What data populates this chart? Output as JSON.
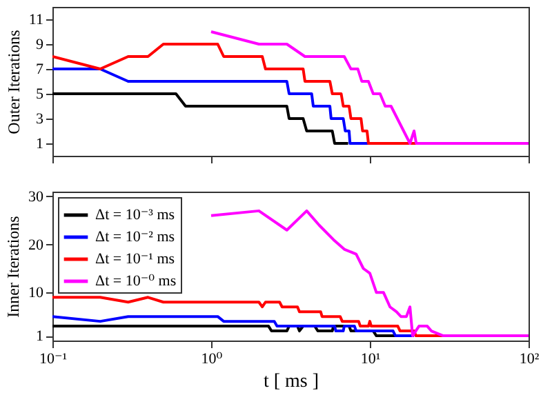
{
  "chart_data": [
    {
      "type": "line",
      "ylabel": "Outer Iterations",
      "log": "x",
      "xlim": [
        0.1,
        100
      ],
      "xticks": [
        {
          "value": 0.1,
          "label": null
        },
        {
          "value": 1,
          "label": null
        },
        {
          "value": 10,
          "label": null
        },
        {
          "value": 100,
          "label": null
        }
      ],
      "ylim": [
        0,
        12
      ],
      "yticks": [
        1,
        3,
        5,
        7,
        9,
        11
      ],
      "tick_labels": "y",
      "legend": false,
      "grid": false,
      "series": [
        {
          "color": "#000000",
          "x": [
            0.1,
            0.6,
            0.69,
            3.0,
            3.1,
            3.8,
            4.0,
            5.8,
            6.0,
            7.3
          ],
          "values": [
            5,
            5,
            4,
            4,
            3,
            3,
            2,
            2,
            1,
            1
          ]
        },
        {
          "color": "#0000ff",
          "x": [
            0.1,
            0.2,
            0.3,
            3.0,
            3.1,
            4.3,
            4.4,
            5.6,
            5.7,
            6.8,
            7.0,
            7.4,
            7.5,
            9.8
          ],
          "values": [
            7,
            7,
            6,
            6,
            5,
            5,
            4,
            4,
            3,
            3,
            2,
            2,
            1,
            1
          ]
        },
        {
          "color": "#ff0000",
          "x": [
            0.1,
            0.2,
            0.3,
            0.4,
            0.5,
            1.1,
            1.2,
            2.1,
            2.2,
            3.8,
            3.9,
            5.6,
            5.8,
            6.6,
            6.8,
            7.4,
            7.6,
            8.8,
            9.0,
            9.6,
            9.8,
            20
          ],
          "values": [
            8,
            7,
            8,
            8,
            9,
            9,
            8,
            8,
            7,
            7,
            6,
            6,
            5,
            5,
            4,
            4,
            3,
            3,
            2,
            2,
            1,
            1
          ]
        },
        {
          "color": "#ff00ff",
          "x": [
            1,
            2,
            3,
            3.9,
            6.9,
            7.6,
            8.4,
            8.9,
            9.8,
            10.5,
            11.6,
            12.5,
            13.6,
            17.9,
            19,
            19.6,
            100
          ],
          "values": [
            10,
            9,
            9,
            8,
            8,
            7,
            7,
            6,
            6,
            5,
            5,
            4,
            4,
            1,
            2,
            1,
            1
          ]
        }
      ]
    },
    {
      "type": "line",
      "ylabel": "Inner Iterations",
      "xlabel": "t [ ms ]",
      "log": "x",
      "xlim": [
        0.1,
        100
      ],
      "xticks": [
        {
          "value": 0.1,
          "label": "10⁻¹"
        },
        {
          "value": 1,
          "label": "10⁰"
        },
        {
          "value": 10,
          "label": "10¹"
        },
        {
          "value": 100,
          "label": "10²"
        }
      ],
      "ylim": [
        0,
        31
      ],
      "yticks": [
        1,
        10,
        20,
        30
      ],
      "legend": "top left",
      "grid": false,
      "series": [
        {
          "name": "Δt = 10⁻³ ms",
          "color": "#000000",
          "x": [
            0.1,
            2.3,
            2.4,
            3.0,
            3.1,
            3.5,
            3.6,
            3.8,
            4.5,
            4.7,
            5.8,
            5.9,
            7.4,
            7.6,
            10.5,
            11,
            15
          ],
          "values": [
            3,
            3,
            2,
            2,
            3,
            3,
            2,
            3,
            3,
            2,
            2,
            3,
            3,
            2,
            2,
            1,
            1
          ]
        },
        {
          "name": "Δt = 10⁻² ms",
          "color": "#0000ff",
          "x": [
            0.1,
            0.2,
            0.3,
            1.1,
            1.2,
            2.5,
            2.6,
            6.0,
            6.1,
            6.8,
            6.9,
            8.0,
            8.2,
            14,
            14.5,
            19
          ],
          "values": [
            5,
            4,
            5,
            5,
            4,
            4,
            3,
            3,
            2,
            2,
            3,
            3,
            2,
            2,
            1,
            1
          ]
        },
        {
          "name": "Δt = 10⁻¹ ms",
          "color": "#ff0000",
          "x": [
            0.1,
            0.2,
            0.3,
            0.4,
            0.5,
            2.0,
            2.1,
            2.2,
            2.7,
            2.8,
            3.5,
            3.6,
            4.9,
            5,
            6.5,
            6.7,
            8.5,
            8.7,
            9.8,
            10,
            10.2,
            15,
            15.5,
            19,
            19.5,
            30
          ],
          "values": [
            9,
            9,
            8,
            9,
            8,
            8,
            7,
            8,
            8,
            7,
            7,
            6,
            6,
            5,
            5,
            4,
            4,
            3,
            3,
            4,
            3,
            3,
            2,
            2,
            1,
            1
          ]
        },
        {
          "name": "Δt = 10⁻⁰ ms",
          "color": "#ff00ff",
          "x": [
            1,
            2,
            3,
            4,
            4.8,
            5.9,
            6.9,
            8.2,
            9.1,
            10,
            11,
            12.2,
            13.4,
            14.7,
            15.7,
            17,
            17.9,
            18.6,
            20.4,
            23,
            24.4,
            29,
            100
          ],
          "values": [
            26,
            27,
            23,
            27,
            24,
            21,
            19,
            18,
            15,
            14,
            10,
            10,
            7,
            6,
            5,
            5,
            7,
            1,
            3,
            3,
            2,
            1,
            1
          ]
        }
      ]
    }
  ]
}
